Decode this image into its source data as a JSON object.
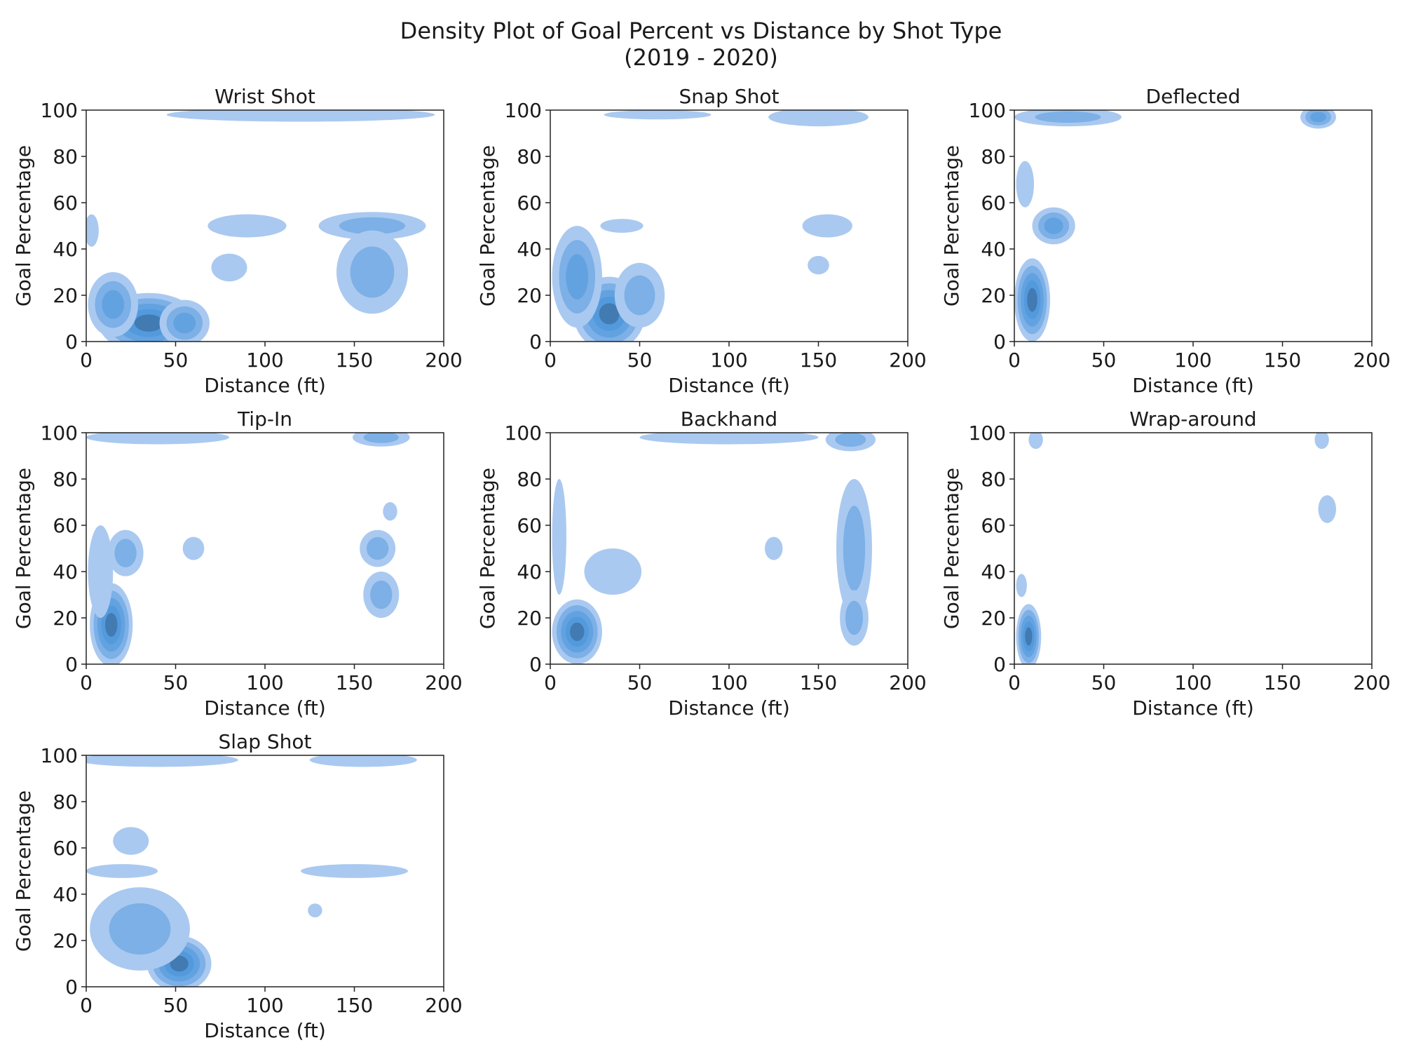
{
  "figure": {
    "title_line1": "Density Plot of Goal Percent vs Distance by Shot Type",
    "title_line2": "(2019 - 2020)"
  },
  "colors": {
    "light": "#aac9f0",
    "mid": "#3d8fd9",
    "dark": "#2a4f78"
  },
  "chart_data": [
    {
      "type": "heatmap",
      "title": "Wrist Shot",
      "xlabel": "Distance (ft)",
      "ylabel": "Goal Percentage",
      "xlim": [
        0,
        200
      ],
      "ylim": [
        0,
        100
      ],
      "xticks": [
        "0",
        "50",
        "100",
        "150",
        "200"
      ],
      "yticks": [
        "0",
        "20",
        "40",
        "60",
        "80",
        "100"
      ],
      "blobs": [
        {
          "x": 35,
          "y": 8,
          "rx": 28,
          "ry": 13,
          "level": 5
        },
        {
          "x": 15,
          "y": 16,
          "rx": 14,
          "ry": 14,
          "level": 3
        },
        {
          "x": 55,
          "y": 8,
          "rx": 14,
          "ry": 10,
          "level": 3
        },
        {
          "x": 3,
          "y": 48,
          "rx": 4,
          "ry": 7,
          "level": 1
        },
        {
          "x": 90,
          "y": 50,
          "rx": 22,
          "ry": 5,
          "level": 1
        },
        {
          "x": 160,
          "y": 50,
          "rx": 30,
          "ry": 6,
          "level": 2
        },
        {
          "x": 160,
          "y": 30,
          "rx": 20,
          "ry": 18,
          "level": 2
        },
        {
          "x": 80,
          "y": 32,
          "rx": 10,
          "ry": 6,
          "level": 1
        },
        {
          "x": 120,
          "y": 98,
          "rx": 75,
          "ry": 3,
          "level": 1
        }
      ]
    },
    {
      "type": "heatmap",
      "title": "Snap Shot",
      "xlabel": "Distance (ft)",
      "ylabel": "Goal Percentage",
      "xlim": [
        0,
        200
      ],
      "ylim": [
        0,
        100
      ],
      "xticks": [
        "0",
        "50",
        "100",
        "150",
        "200"
      ],
      "yticks": [
        "0",
        "20",
        "40",
        "60",
        "80",
        "100"
      ],
      "blobs": [
        {
          "x": 33,
          "y": 12,
          "rx": 20,
          "ry": 16,
          "level": 5
        },
        {
          "x": 15,
          "y": 28,
          "rx": 14,
          "ry": 22,
          "level": 3
        },
        {
          "x": 50,
          "y": 20,
          "rx": 14,
          "ry": 14,
          "level": 2
        },
        {
          "x": 40,
          "y": 50,
          "rx": 12,
          "ry": 3,
          "level": 1
        },
        {
          "x": 155,
          "y": 50,
          "rx": 14,
          "ry": 5,
          "level": 1
        },
        {
          "x": 150,
          "y": 33,
          "rx": 6,
          "ry": 4,
          "level": 1
        },
        {
          "x": 150,
          "y": 97,
          "rx": 28,
          "ry": 4,
          "level": 1
        },
        {
          "x": 60,
          "y": 98,
          "rx": 30,
          "ry": 2,
          "level": 1
        }
      ]
    },
    {
      "type": "heatmap",
      "title": "Deflected",
      "xlabel": "Distance (ft)",
      "ylabel": "Goal Percentage",
      "xlim": [
        0,
        200
      ],
      "ylim": [
        0,
        100
      ],
      "xticks": [
        "0",
        "50",
        "100",
        "150",
        "200"
      ],
      "yticks": [
        "0",
        "20",
        "40",
        "60",
        "80",
        "100"
      ],
      "blobs": [
        {
          "x": 10,
          "y": 18,
          "rx": 10,
          "ry": 18,
          "level": 5
        },
        {
          "x": 22,
          "y": 50,
          "rx": 12,
          "ry": 8,
          "level": 3
        },
        {
          "x": 6,
          "y": 68,
          "rx": 5,
          "ry": 10,
          "level": 1
        },
        {
          "x": 30,
          "y": 97,
          "rx": 30,
          "ry": 4,
          "level": 2
        },
        {
          "x": 170,
          "y": 97,
          "rx": 10,
          "ry": 5,
          "level": 3
        }
      ]
    },
    {
      "type": "heatmap",
      "title": "Tip-In",
      "xlabel": "Distance (ft)",
      "ylabel": "Goal Percentage",
      "xlim": [
        0,
        200
      ],
      "ylim": [
        0,
        100
      ],
      "xticks": [
        "0",
        "50",
        "100",
        "150",
        "200"
      ],
      "yticks": [
        "0",
        "20",
        "40",
        "60",
        "80",
        "100"
      ],
      "blobs": [
        {
          "x": 14,
          "y": 17,
          "rx": 12,
          "ry": 18,
          "level": 5
        },
        {
          "x": 22,
          "y": 48,
          "rx": 10,
          "ry": 10,
          "level": 2
        },
        {
          "x": 8,
          "y": 40,
          "rx": 7,
          "ry": 20,
          "level": 1
        },
        {
          "x": 60,
          "y": 50,
          "rx": 6,
          "ry": 5,
          "level": 1
        },
        {
          "x": 163,
          "y": 50,
          "rx": 10,
          "ry": 8,
          "level": 2
        },
        {
          "x": 165,
          "y": 30,
          "rx": 10,
          "ry": 10,
          "level": 2
        },
        {
          "x": 170,
          "y": 66,
          "rx": 4,
          "ry": 4,
          "level": 1
        },
        {
          "x": 40,
          "y": 98,
          "rx": 40,
          "ry": 3,
          "level": 1
        },
        {
          "x": 165,
          "y": 98,
          "rx": 16,
          "ry": 4,
          "level": 2
        }
      ]
    },
    {
      "type": "heatmap",
      "title": "Backhand",
      "xlabel": "Distance (ft)",
      "ylabel": "Goal Percentage",
      "xlim": [
        0,
        200
      ],
      "ylim": [
        0,
        100
      ],
      "xticks": [
        "0",
        "50",
        "100",
        "150",
        "200"
      ],
      "yticks": [
        "0",
        "20",
        "40",
        "60",
        "80",
        "100"
      ],
      "blobs": [
        {
          "x": 15,
          "y": 14,
          "rx": 14,
          "ry": 14,
          "level": 5
        },
        {
          "x": 5,
          "y": 55,
          "rx": 4,
          "ry": 25,
          "level": 1
        },
        {
          "x": 35,
          "y": 40,
          "rx": 16,
          "ry": 10,
          "level": 1
        },
        {
          "x": 170,
          "y": 50,
          "rx": 10,
          "ry": 30,
          "level": 2
        },
        {
          "x": 170,
          "y": 20,
          "rx": 8,
          "ry": 12,
          "level": 2
        },
        {
          "x": 125,
          "y": 50,
          "rx": 5,
          "ry": 5,
          "level": 1
        },
        {
          "x": 100,
          "y": 98,
          "rx": 50,
          "ry": 3,
          "level": 1
        },
        {
          "x": 168,
          "y": 97,
          "rx": 14,
          "ry": 5,
          "level": 2
        }
      ]
    },
    {
      "type": "heatmap",
      "title": "Wrap-around",
      "xlabel": "Distance (ft)",
      "ylabel": "Goal Percentage",
      "xlim": [
        0,
        200
      ],
      "ylim": [
        0,
        100
      ],
      "xticks": [
        "0",
        "50",
        "100",
        "150",
        "200"
      ],
      "yticks": [
        "0",
        "20",
        "40",
        "60",
        "80",
        "100"
      ],
      "blobs": [
        {
          "x": 8,
          "y": 12,
          "rx": 7,
          "ry": 14,
          "level": 5
        },
        {
          "x": 4,
          "y": 34,
          "rx": 3,
          "ry": 5,
          "level": 1
        },
        {
          "x": 175,
          "y": 67,
          "rx": 5,
          "ry": 6,
          "level": 1
        },
        {
          "x": 12,
          "y": 97,
          "rx": 4,
          "ry": 4,
          "level": 1
        },
        {
          "x": 172,
          "y": 97,
          "rx": 4,
          "ry": 4,
          "level": 1
        }
      ]
    },
    {
      "type": "heatmap",
      "title": "Slap Shot",
      "xlabel": "Distance (ft)",
      "ylabel": "Goal Percentage",
      "xlim": [
        0,
        200
      ],
      "ylim": [
        0,
        100
      ],
      "xticks": [
        "0",
        "50",
        "100",
        "150",
        "200"
      ],
      "yticks": [
        "0",
        "20",
        "40",
        "60",
        "80",
        "100"
      ],
      "blobs": [
        {
          "x": 52,
          "y": 10,
          "rx": 18,
          "ry": 12,
          "level": 5
        },
        {
          "x": 30,
          "y": 25,
          "rx": 28,
          "ry": 18,
          "level": 2
        },
        {
          "x": 20,
          "y": 50,
          "rx": 20,
          "ry": 3,
          "level": 1
        },
        {
          "x": 25,
          "y": 63,
          "rx": 10,
          "ry": 6,
          "level": 1
        },
        {
          "x": 150,
          "y": 50,
          "rx": 30,
          "ry": 3,
          "level": 1
        },
        {
          "x": 128,
          "y": 33,
          "rx": 4,
          "ry": 3,
          "level": 1
        },
        {
          "x": 40,
          "y": 98,
          "rx": 45,
          "ry": 3,
          "level": 1
        },
        {
          "x": 155,
          "y": 98,
          "rx": 30,
          "ry": 3,
          "level": 1
        }
      ]
    }
  ]
}
